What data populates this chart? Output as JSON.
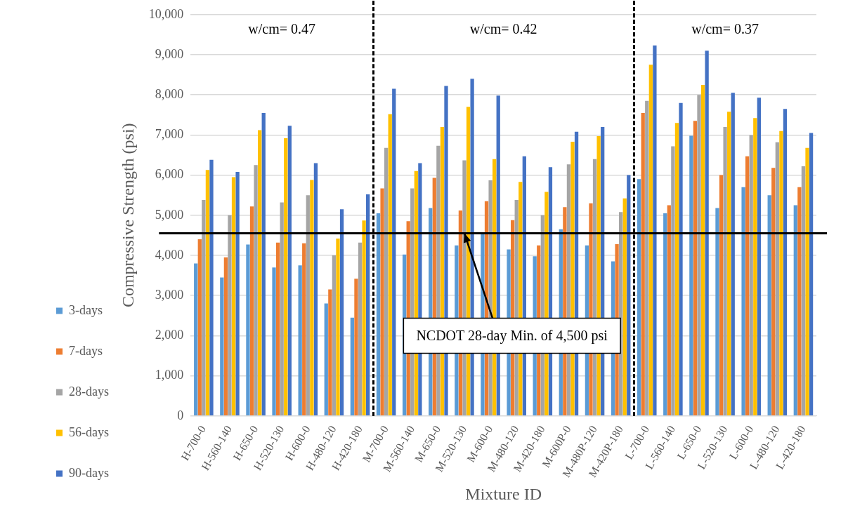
{
  "chart_data": {
    "type": "bar",
    "xlabel": "Mixture ID",
    "ylabel": "Compressive Strength (psi)",
    "categories": [
      "H-700-0",
      "H-560-140",
      "H-650-0",
      "H-520-130",
      "H-600-0",
      "H-480-120",
      "H-420-180",
      "M-700-0",
      "M-560-140",
      "M-650-0",
      "M-520-130",
      "M-600-0",
      "M-480-120",
      "M-420-180",
      "M-600P-0",
      "M-480P-120",
      "M-420P-180",
      "L-700-0",
      "L-560-140",
      "L-650-0",
      "L-520-130",
      "L-600-0",
      "L-480-120",
      "L-420-180"
    ],
    "series": [
      {
        "name": "3-days",
        "color": "#5b9bd5",
        "values": [
          3800,
          3450,
          4270,
          3700,
          3750,
          2800,
          2450,
          5050,
          4020,
          5180,
          4250,
          4550,
          4150,
          3980,
          4650,
          4250,
          3850,
          5900,
          5050,
          6980,
          5180,
          5700,
          5500,
          5250
        ]
      },
      {
        "name": "7-days",
        "color": "#ed7d31",
        "values": [
          4400,
          3950,
          5220,
          4320,
          4300,
          3150,
          3420,
          5670,
          4850,
          5930,
          5120,
          5350,
          4880,
          4250,
          5200,
          5300,
          4280,
          7550,
          5250,
          7350,
          6000,
          6470,
          6180,
          5700
        ]
      },
      {
        "name": "28-days",
        "color": "#a5a5a5",
        "values": [
          5380,
          5000,
          6250,
          5320,
          5500,
          4000,
          4320,
          6680,
          5670,
          6730,
          6370,
          5870,
          5380,
          5000,
          6270,
          6400,
          5080,
          7850,
          6720,
          8000,
          7200,
          7000,
          6820,
          6220
        ]
      },
      {
        "name": "56-days",
        "color": "#ffc000",
        "values": [
          6130,
          5950,
          7120,
          6920,
          5880,
          4420,
          4870,
          7520,
          6100,
          7200,
          7700,
          6400,
          5830,
          5580,
          6830,
          6970,
          5420,
          8750,
          7300,
          8250,
          7580,
          7420,
          7100,
          6680
        ]
      },
      {
        "name": "90-days",
        "color": "#4472c4",
        "values": [
          6380,
          6080,
          7550,
          7230,
          6300,
          5150,
          5520,
          8150,
          6300,
          8220,
          8400,
          7980,
          6470,
          6200,
          7080,
          7200,
          6000,
          9230,
          7800,
          9100,
          8050,
          7930,
          7650,
          7050
        ]
      }
    ],
    "ylim": [
      0,
      10000
    ],
    "yticks": [
      {
        "value": 0,
        "label": "0"
      },
      {
        "value": 1000,
        "label": "1,000"
      },
      {
        "value": 2000,
        "label": "2,000"
      },
      {
        "value": 3000,
        "label": "3,000"
      },
      {
        "value": 4000,
        "label": "4,000"
      },
      {
        "value": 5000,
        "label": "5,000"
      },
      {
        "value": 6000,
        "label": "6,000"
      },
      {
        "value": 7000,
        "label": "7,000"
      },
      {
        "value": 8000,
        "label": "8,000"
      },
      {
        "value": 9000,
        "label": "9,000"
      },
      {
        "value": 10000,
        "label": "10,000"
      }
    ],
    "grid": "y",
    "legend": "left",
    "ref_lines": [
      {
        "axis": "y",
        "value": 4550,
        "color": "#000000",
        "line_style": "solid"
      }
    ],
    "annotations": [
      "w/cm= 0.47",
      "w/cm= 0.42",
      "w/cm= 0.37",
      {
        "text": "NCDOT 28-day Min. of 4,500 psi",
        "x": "M-520-130",
        "y": 4550
      }
    ]
  }
}
